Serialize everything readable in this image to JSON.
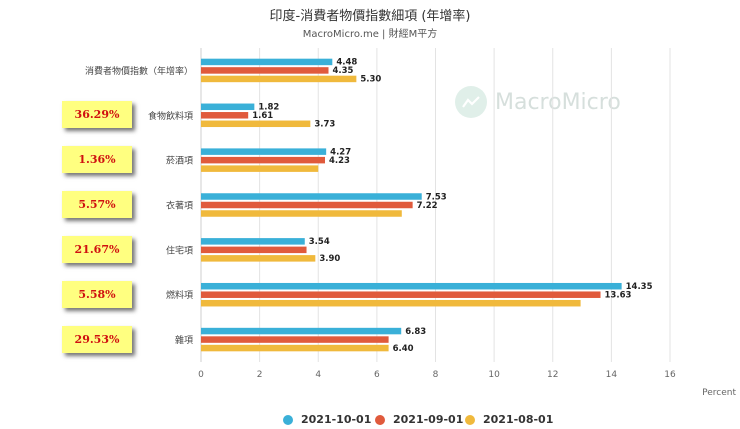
{
  "header": {
    "title": "印度-消費者物價指數細項 (年增率)",
    "subtitle": "MacroMicro.me | 財經M平方"
  },
  "watermark": {
    "text": "MacroMicro"
  },
  "weights": [
    "36.29%",
    "1.36%",
    "5.57%",
    "21.67%",
    "5.58%",
    "29.53%"
  ],
  "chart_data": {
    "type": "bar",
    "orientation": "horizontal",
    "categories": [
      "消費者物價指數（年增率）",
      "食物飲料項",
      "菸酒項",
      "衣著項",
      "住宅項",
      "燃料項",
      "雜項"
    ],
    "series": [
      {
        "name": "2021-10-01",
        "color": "#3ab0d8",
        "values": [
          4.48,
          1.82,
          4.27,
          7.53,
          3.54,
          14.35,
          6.83
        ],
        "labels": [
          "4.48",
          "1.82",
          "4.27",
          "7.53",
          "3.54",
          "14.35",
          "6.83"
        ]
      },
      {
        "name": "2021-09-01",
        "color": "#e05a3c",
        "values": [
          4.35,
          1.61,
          4.23,
          7.22,
          3.6,
          13.63,
          6.4
        ],
        "labels": [
          "4.35",
          "1.61",
          "4.23",
          "7.22",
          "",
          "13.63",
          ""
        ]
      },
      {
        "name": "2021-08-01",
        "color": "#f0b93c",
        "values": [
          5.3,
          3.73,
          4.0,
          6.85,
          3.9,
          12.95,
          6.4
        ],
        "labels": [
          "5.30",
          "3.73",
          "",
          "",
          "3.90",
          "",
          "6.40"
        ]
      }
    ],
    "xlim": [
      0,
      16
    ],
    "xticks": [
      0,
      2,
      4,
      6,
      8,
      10,
      12,
      14,
      16
    ],
    "xlabel": "Percent",
    "grid": true,
    "legend_position": "bottom"
  }
}
